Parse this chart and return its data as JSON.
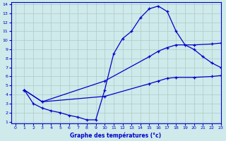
{
  "xlabel": "Graphe des températures (°c)",
  "background_color": "#ceeaea",
  "grid_color": "#b0c8c8",
  "line_color": "#0000cc",
  "xlim": [
    -0.5,
    23
  ],
  "ylim": [
    0.8,
    14.2
  ],
  "xticks": [
    0,
    1,
    2,
    3,
    4,
    5,
    6,
    7,
    8,
    9,
    10,
    11,
    12,
    13,
    14,
    15,
    16,
    17,
    18,
    19,
    20,
    21,
    22,
    23
  ],
  "yticks": [
    1,
    2,
    3,
    4,
    5,
    6,
    7,
    8,
    9,
    10,
    11,
    12,
    13,
    14
  ],
  "line1_x": [
    1,
    2,
    3,
    4,
    5,
    6,
    7,
    8,
    9,
    10,
    11,
    12,
    13,
    14,
    15,
    16,
    17,
    18,
    19,
    20,
    21,
    22,
    23
  ],
  "line1_y": [
    4.5,
    3.0,
    2.5,
    2.2,
    2.0,
    1.7,
    1.5,
    1.2,
    1.2,
    4.5,
    8.5,
    10.2,
    11.0,
    12.5,
    13.5,
    13.8,
    13.2,
    11.0,
    9.5,
    9.0,
    8.2,
    7.5,
    7.0
  ],
  "line2_x": [
    1,
    3,
    10,
    15,
    16,
    17,
    18,
    20,
    22,
    23
  ],
  "line2_y": [
    4.5,
    3.2,
    5.5,
    8.2,
    8.8,
    9.2,
    9.5,
    9.5,
    9.6,
    9.7
  ],
  "line3_x": [
    1,
    3,
    10,
    15,
    16,
    17,
    18,
    20,
    22,
    23
  ],
  "line3_y": [
    4.5,
    3.2,
    3.8,
    5.2,
    5.5,
    5.8,
    5.9,
    5.9,
    6.0,
    6.1
  ]
}
